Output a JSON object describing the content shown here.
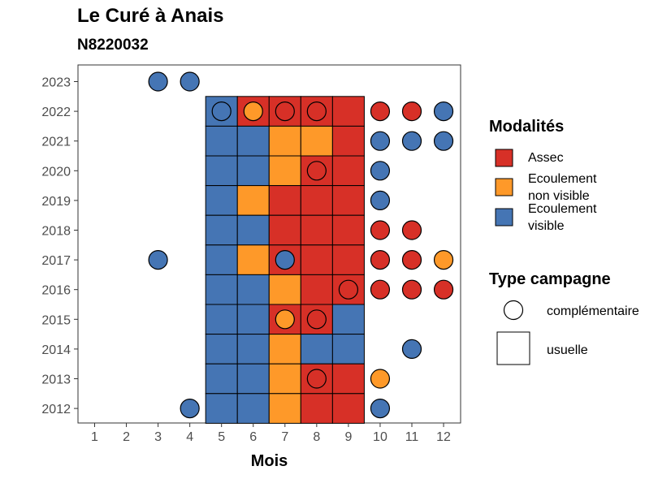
{
  "chart_data": {
    "type": "heatmap",
    "title": "Le Curé à Anais",
    "subtitle": "N8220032",
    "xlabel": "Mois",
    "ylabel": "",
    "x_ticks": [
      "1",
      "2",
      "3",
      "4",
      "5",
      "6",
      "7",
      "8",
      "9",
      "10",
      "11",
      "12"
    ],
    "y_ticks": [
      "2012",
      "2013",
      "2014",
      "2015",
      "2016",
      "2017",
      "2018",
      "2019",
      "2020",
      "2021",
      "2022",
      "2023"
    ],
    "colors": {
      "Assec": "#d73027",
      "Ecoulement non visible": "#fe9929",
      "Ecoulement visible": "#4575b4"
    },
    "legend": {
      "placement": "right",
      "modalites_title": "Modalités",
      "modalites": [
        {
          "key": "Assec",
          "lines": [
            "Assec"
          ]
        },
        {
          "key": "Ecoulement non visible",
          "lines": [
            "Ecoulement",
            "non visible"
          ]
        },
        {
          "key": "Ecoulement visible",
          "lines": [
            "Ecoulement",
            "visible"
          ]
        }
      ],
      "type_title": "Type campagne",
      "types": [
        "complémentaire",
        "usuelle"
      ]
    },
    "usuelle": [
      {
        "year": 2022,
        "month": 5,
        "value": "Ecoulement visible"
      },
      {
        "year": 2022,
        "month": 6,
        "value": "Assec"
      },
      {
        "year": 2022,
        "month": 7,
        "value": "Assec"
      },
      {
        "year": 2022,
        "month": 8,
        "value": "Assec"
      },
      {
        "year": 2022,
        "month": 9,
        "value": "Assec"
      },
      {
        "year": 2021,
        "month": 5,
        "value": "Ecoulement visible"
      },
      {
        "year": 2021,
        "month": 6,
        "value": "Ecoulement visible"
      },
      {
        "year": 2021,
        "month": 7,
        "value": "Ecoulement non visible"
      },
      {
        "year": 2021,
        "month": 8,
        "value": "Ecoulement non visible"
      },
      {
        "year": 2021,
        "month": 9,
        "value": "Assec"
      },
      {
        "year": 2020,
        "month": 5,
        "value": "Ecoulement visible"
      },
      {
        "year": 2020,
        "month": 6,
        "value": "Ecoulement visible"
      },
      {
        "year": 2020,
        "month": 7,
        "value": "Ecoulement non visible"
      },
      {
        "year": 2020,
        "month": 8,
        "value": "Assec"
      },
      {
        "year": 2020,
        "month": 9,
        "value": "Assec"
      },
      {
        "year": 2019,
        "month": 5,
        "value": "Ecoulement visible"
      },
      {
        "year": 2019,
        "month": 6,
        "value": "Ecoulement non visible"
      },
      {
        "year": 2019,
        "month": 7,
        "value": "Assec"
      },
      {
        "year": 2019,
        "month": 8,
        "value": "Assec"
      },
      {
        "year": 2019,
        "month": 9,
        "value": "Assec"
      },
      {
        "year": 2018,
        "month": 5,
        "value": "Ecoulement visible"
      },
      {
        "year": 2018,
        "month": 6,
        "value": "Ecoulement visible"
      },
      {
        "year": 2018,
        "month": 7,
        "value": "Assec"
      },
      {
        "year": 2018,
        "month": 8,
        "value": "Assec"
      },
      {
        "year": 2018,
        "month": 9,
        "value": "Assec"
      },
      {
        "year": 2017,
        "month": 5,
        "value": "Ecoulement visible"
      },
      {
        "year": 2017,
        "month": 6,
        "value": "Ecoulement non visible"
      },
      {
        "year": 2017,
        "month": 7,
        "value": "Assec"
      },
      {
        "year": 2017,
        "month": 8,
        "value": "Assec"
      },
      {
        "year": 2017,
        "month": 9,
        "value": "Assec"
      },
      {
        "year": 2016,
        "month": 5,
        "value": "Ecoulement visible"
      },
      {
        "year": 2016,
        "month": 6,
        "value": "Ecoulement visible"
      },
      {
        "year": 2016,
        "month": 7,
        "value": "Ecoulement non visible"
      },
      {
        "year": 2016,
        "month": 8,
        "value": "Assec"
      },
      {
        "year": 2016,
        "month": 9,
        "value": "Assec"
      },
      {
        "year": 2015,
        "month": 5,
        "value": "Ecoulement visible"
      },
      {
        "year": 2015,
        "month": 6,
        "value": "Ecoulement visible"
      },
      {
        "year": 2015,
        "month": 7,
        "value": "Assec"
      },
      {
        "year": 2015,
        "month": 8,
        "value": "Assec"
      },
      {
        "year": 2015,
        "month": 9,
        "value": "Ecoulement visible"
      },
      {
        "year": 2014,
        "month": 5,
        "value": "Ecoulement visible"
      },
      {
        "year": 2014,
        "month": 6,
        "value": "Ecoulement visible"
      },
      {
        "year": 2014,
        "month": 7,
        "value": "Ecoulement non visible"
      },
      {
        "year": 2014,
        "month": 8,
        "value": "Ecoulement visible"
      },
      {
        "year": 2014,
        "month": 9,
        "value": "Ecoulement visible"
      },
      {
        "year": 2013,
        "month": 5,
        "value": "Ecoulement visible"
      },
      {
        "year": 2013,
        "month": 6,
        "value": "Ecoulement visible"
      },
      {
        "year": 2013,
        "month": 7,
        "value": "Ecoulement non visible"
      },
      {
        "year": 2013,
        "month": 8,
        "value": "Assec"
      },
      {
        "year": 2013,
        "month": 9,
        "value": "Assec"
      },
      {
        "year": 2012,
        "month": 5,
        "value": "Ecoulement visible"
      },
      {
        "year": 2012,
        "month": 6,
        "value": "Ecoulement visible"
      },
      {
        "year": 2012,
        "month": 7,
        "value": "Ecoulement non visible"
      },
      {
        "year": 2012,
        "month": 8,
        "value": "Assec"
      },
      {
        "year": 2012,
        "month": 9,
        "value": "Assec"
      }
    ],
    "complementaire": [
      {
        "year": 2023,
        "month": 3,
        "value": "Ecoulement visible"
      },
      {
        "year": 2023,
        "month": 4,
        "value": "Ecoulement visible"
      },
      {
        "year": 2022,
        "month": 5,
        "value": "Ecoulement visible"
      },
      {
        "year": 2022,
        "month": 6,
        "value": "Ecoulement non visible"
      },
      {
        "year": 2022,
        "month": 7,
        "value": "Assec"
      },
      {
        "year": 2022,
        "month": 8,
        "value": "Assec"
      },
      {
        "year": 2022,
        "month": 10,
        "value": "Assec"
      },
      {
        "year": 2022,
        "month": 11,
        "value": "Assec"
      },
      {
        "year": 2022,
        "month": 12,
        "value": "Ecoulement visible"
      },
      {
        "year": 2021,
        "month": 10,
        "value": "Ecoulement visible"
      },
      {
        "year": 2021,
        "month": 11,
        "value": "Ecoulement visible"
      },
      {
        "year": 2021,
        "month": 12,
        "value": "Ecoulement visible"
      },
      {
        "year": 2020,
        "month": 8,
        "value": "Assec"
      },
      {
        "year": 2020,
        "month": 10,
        "value": "Ecoulement visible"
      },
      {
        "year": 2019,
        "month": 10,
        "value": "Ecoulement visible"
      },
      {
        "year": 2018,
        "month": 10,
        "value": "Assec"
      },
      {
        "year": 2018,
        "month": 11,
        "value": "Assec"
      },
      {
        "year": 2017,
        "month": 3,
        "value": "Ecoulement visible"
      },
      {
        "year": 2017,
        "month": 7,
        "value": "Ecoulement visible"
      },
      {
        "year": 2017,
        "month": 10,
        "value": "Assec"
      },
      {
        "year": 2017,
        "month": 11,
        "value": "Assec"
      },
      {
        "year": 2017,
        "month": 12,
        "value": "Ecoulement non visible"
      },
      {
        "year": 2016,
        "month": 9,
        "value": "Assec"
      },
      {
        "year": 2016,
        "month": 10,
        "value": "Assec"
      },
      {
        "year": 2016,
        "month": 11,
        "value": "Assec"
      },
      {
        "year": 2016,
        "month": 12,
        "value": "Assec"
      },
      {
        "year": 2015,
        "month": 7,
        "value": "Ecoulement non visible"
      },
      {
        "year": 2015,
        "month": 8,
        "value": "Assec"
      },
      {
        "year": 2014,
        "month": 11,
        "value": "Ecoulement visible"
      },
      {
        "year": 2013,
        "month": 8,
        "value": "Assec"
      },
      {
        "year": 2013,
        "month": 10,
        "value": "Ecoulement non visible"
      },
      {
        "year": 2012,
        "month": 4,
        "value": "Ecoulement visible"
      },
      {
        "year": 2012,
        "month": 10,
        "value": "Ecoulement visible"
      }
    ]
  }
}
